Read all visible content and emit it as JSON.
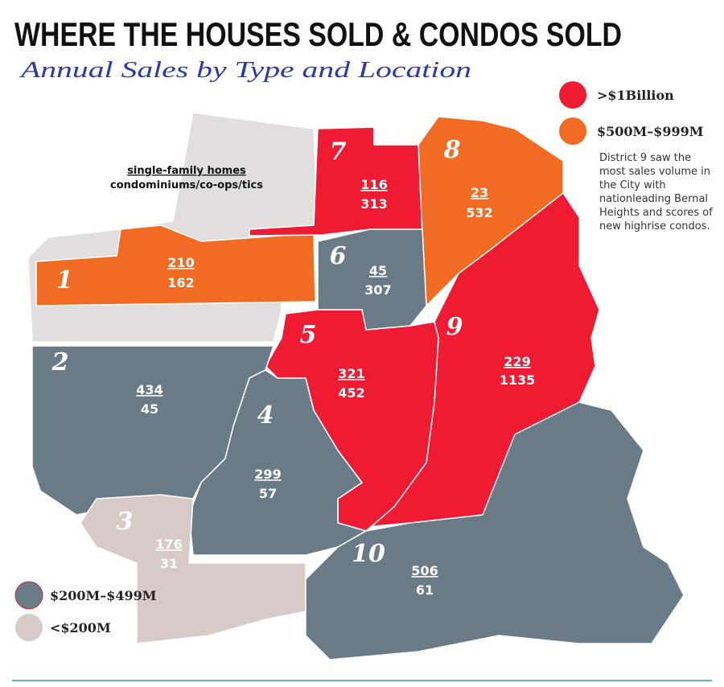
{
  "header": {
    "title": "WHERE THE HOUSES SOLD & CONDOS SOLD",
    "subtitle": "Annual Sales by Type and Location"
  },
  "key": {
    "houses": "single-family homes",
    "condos": "condominiums/co-ops/tics"
  },
  "legend": [
    {
      "label": ">$1Billion",
      "color": "#ee1b33"
    },
    {
      "label": "$500M–$999M",
      "color": "#f26b22"
    },
    {
      "label": "$200M–$499M",
      "color": "#6a7b88"
    },
    {
      "label": "<$200M",
      "color": "#d9caca"
    }
  ],
  "note": "District 9 saw the most sales volume in the City with nationleading Bernal Heights and scores of new highrise condos.",
  "districts": [
    {
      "label": "1",
      "houses": 210,
      "condos": 162
    },
    {
      "label": "2",
      "houses": 434,
      "condos": 45
    },
    {
      "label": "3",
      "houses": 176,
      "condos": 31
    },
    {
      "label": "4",
      "houses": 299,
      "condos": 57
    },
    {
      "label": "5",
      "houses": 321,
      "condos": 452
    },
    {
      "label": "6",
      "houses": 45,
      "condos": 307
    },
    {
      "label": "7",
      "houses": 116,
      "condos": 313
    },
    {
      "label": "8",
      "houses": 23,
      "condos": 532
    },
    {
      "label": "9",
      "houses": 229,
      "condos": 1135
    },
    {
      "label": "10",
      "houses": 506,
      "condos": 61
    }
  ]
}
